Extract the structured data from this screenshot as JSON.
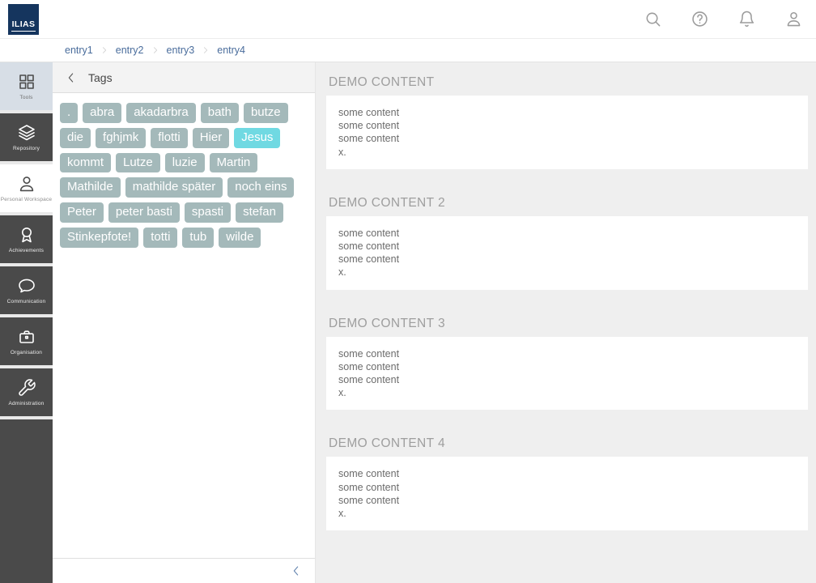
{
  "colors": {
    "brand_navy": "#15355e",
    "link_blue": "#4a6d9c",
    "tag_default": "#a4b9ba",
    "tag_highlight": "#70d9e2",
    "sidebar_dark": "#4a4a4a",
    "sidebar_active": "#d7dee6",
    "content_bg": "#efefef"
  },
  "header": {
    "logo_text": "ILIAS",
    "icons": [
      {
        "name": "search-icon",
        "glyph": "search"
      },
      {
        "name": "help-icon",
        "glyph": "help"
      },
      {
        "name": "notifications-icon",
        "glyph": "bell"
      },
      {
        "name": "user-menu-icon",
        "glyph": "user"
      }
    ]
  },
  "breadcrumbs": [
    "entry1",
    "entry2",
    "entry3",
    "entry4"
  ],
  "sidebar": {
    "items": [
      {
        "label": "Tools",
        "icon": "grid",
        "variant": "active"
      },
      {
        "label": "Repository",
        "icon": "layers",
        "variant": "dark"
      },
      {
        "label": "Personal Workspace",
        "icon": "user",
        "variant": "white"
      },
      {
        "label": "Achievements",
        "icon": "award",
        "variant": "dark"
      },
      {
        "label": "Communication",
        "icon": "chat",
        "variant": "dark"
      },
      {
        "label": "Organisation",
        "icon": "briefcase",
        "variant": "dark"
      },
      {
        "label": "Administration",
        "icon": "wrench",
        "variant": "dark"
      }
    ]
  },
  "tags_panel": {
    "title": "Tags",
    "tags": [
      {
        "label": ".",
        "highlighted": false
      },
      {
        "label": "abra",
        "highlighted": false
      },
      {
        "label": "akadarbra",
        "highlighted": false
      },
      {
        "label": "bath",
        "highlighted": false
      },
      {
        "label": "butze",
        "highlighted": false
      },
      {
        "label": "die",
        "highlighted": false
      },
      {
        "label": "fghjmk",
        "highlighted": false
      },
      {
        "label": "flotti",
        "highlighted": false
      },
      {
        "label": "Hier",
        "highlighted": false
      },
      {
        "label": "Jesus",
        "highlighted": true
      },
      {
        "label": "kommt",
        "highlighted": false
      },
      {
        "label": "Lutze",
        "highlighted": false
      },
      {
        "label": "luzie",
        "highlighted": false
      },
      {
        "label": "Martin",
        "highlighted": false
      },
      {
        "label": "Mathilde",
        "highlighted": false
      },
      {
        "label": "mathilde später",
        "highlighted": false
      },
      {
        "label": "noch eins",
        "highlighted": false
      },
      {
        "label": "Peter",
        "highlighted": false
      },
      {
        "label": "peter basti",
        "highlighted": false
      },
      {
        "label": "spasti",
        "highlighted": false
      },
      {
        "label": "stefan",
        "highlighted": false
      },
      {
        "label": "Stinkepfote!",
        "highlighted": false
      },
      {
        "label": "totti",
        "highlighted": false
      },
      {
        "label": "tub",
        "highlighted": false
      },
      {
        "label": "wilde",
        "highlighted": false
      }
    ]
  },
  "main": {
    "sections": [
      {
        "title": "DEMO CONTENT",
        "lines": [
          "some content",
          "some content",
          "some content",
          "x."
        ]
      },
      {
        "title": "DEMO CONTENT 2",
        "lines": [
          "some content",
          "some content",
          "some content",
          "x."
        ]
      },
      {
        "title": "DEMO CONTENT 3",
        "lines": [
          "some content",
          "some content",
          "some content",
          "x."
        ]
      },
      {
        "title": "DEMO CONTENT 4",
        "lines": [
          "some content",
          "some content",
          "some content",
          "x."
        ]
      }
    ]
  }
}
